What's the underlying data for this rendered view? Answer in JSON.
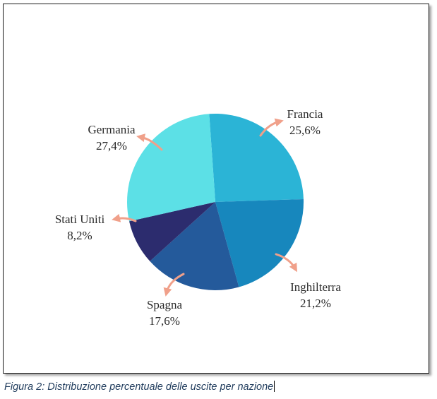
{
  "chart_data": {
    "type": "pie",
    "slices": [
      {
        "label": "Francia",
        "value_label": "25,6%",
        "value": 25.6,
        "color": "#2bb4d6"
      },
      {
        "label": "Inghilterra",
        "value_label": "21,2%",
        "value": 21.2,
        "color": "#1787bd"
      },
      {
        "label": "Spagna",
        "value_label": "17,6%",
        "value": 17.6,
        "color": "#245a9b"
      },
      {
        "label": "Stati Uniti",
        "value_label": "8,2%",
        "value": 8.2,
        "color": "#2c2c6e"
      },
      {
        "label": "Germania",
        "value_label": "27,4%",
        "value": 27.4,
        "color": "#5ce0e6"
      }
    ],
    "annotation_color": "#f0a08a"
  },
  "caption": "Figura 2: Distribuzione percentuale delle uscite per nazione"
}
